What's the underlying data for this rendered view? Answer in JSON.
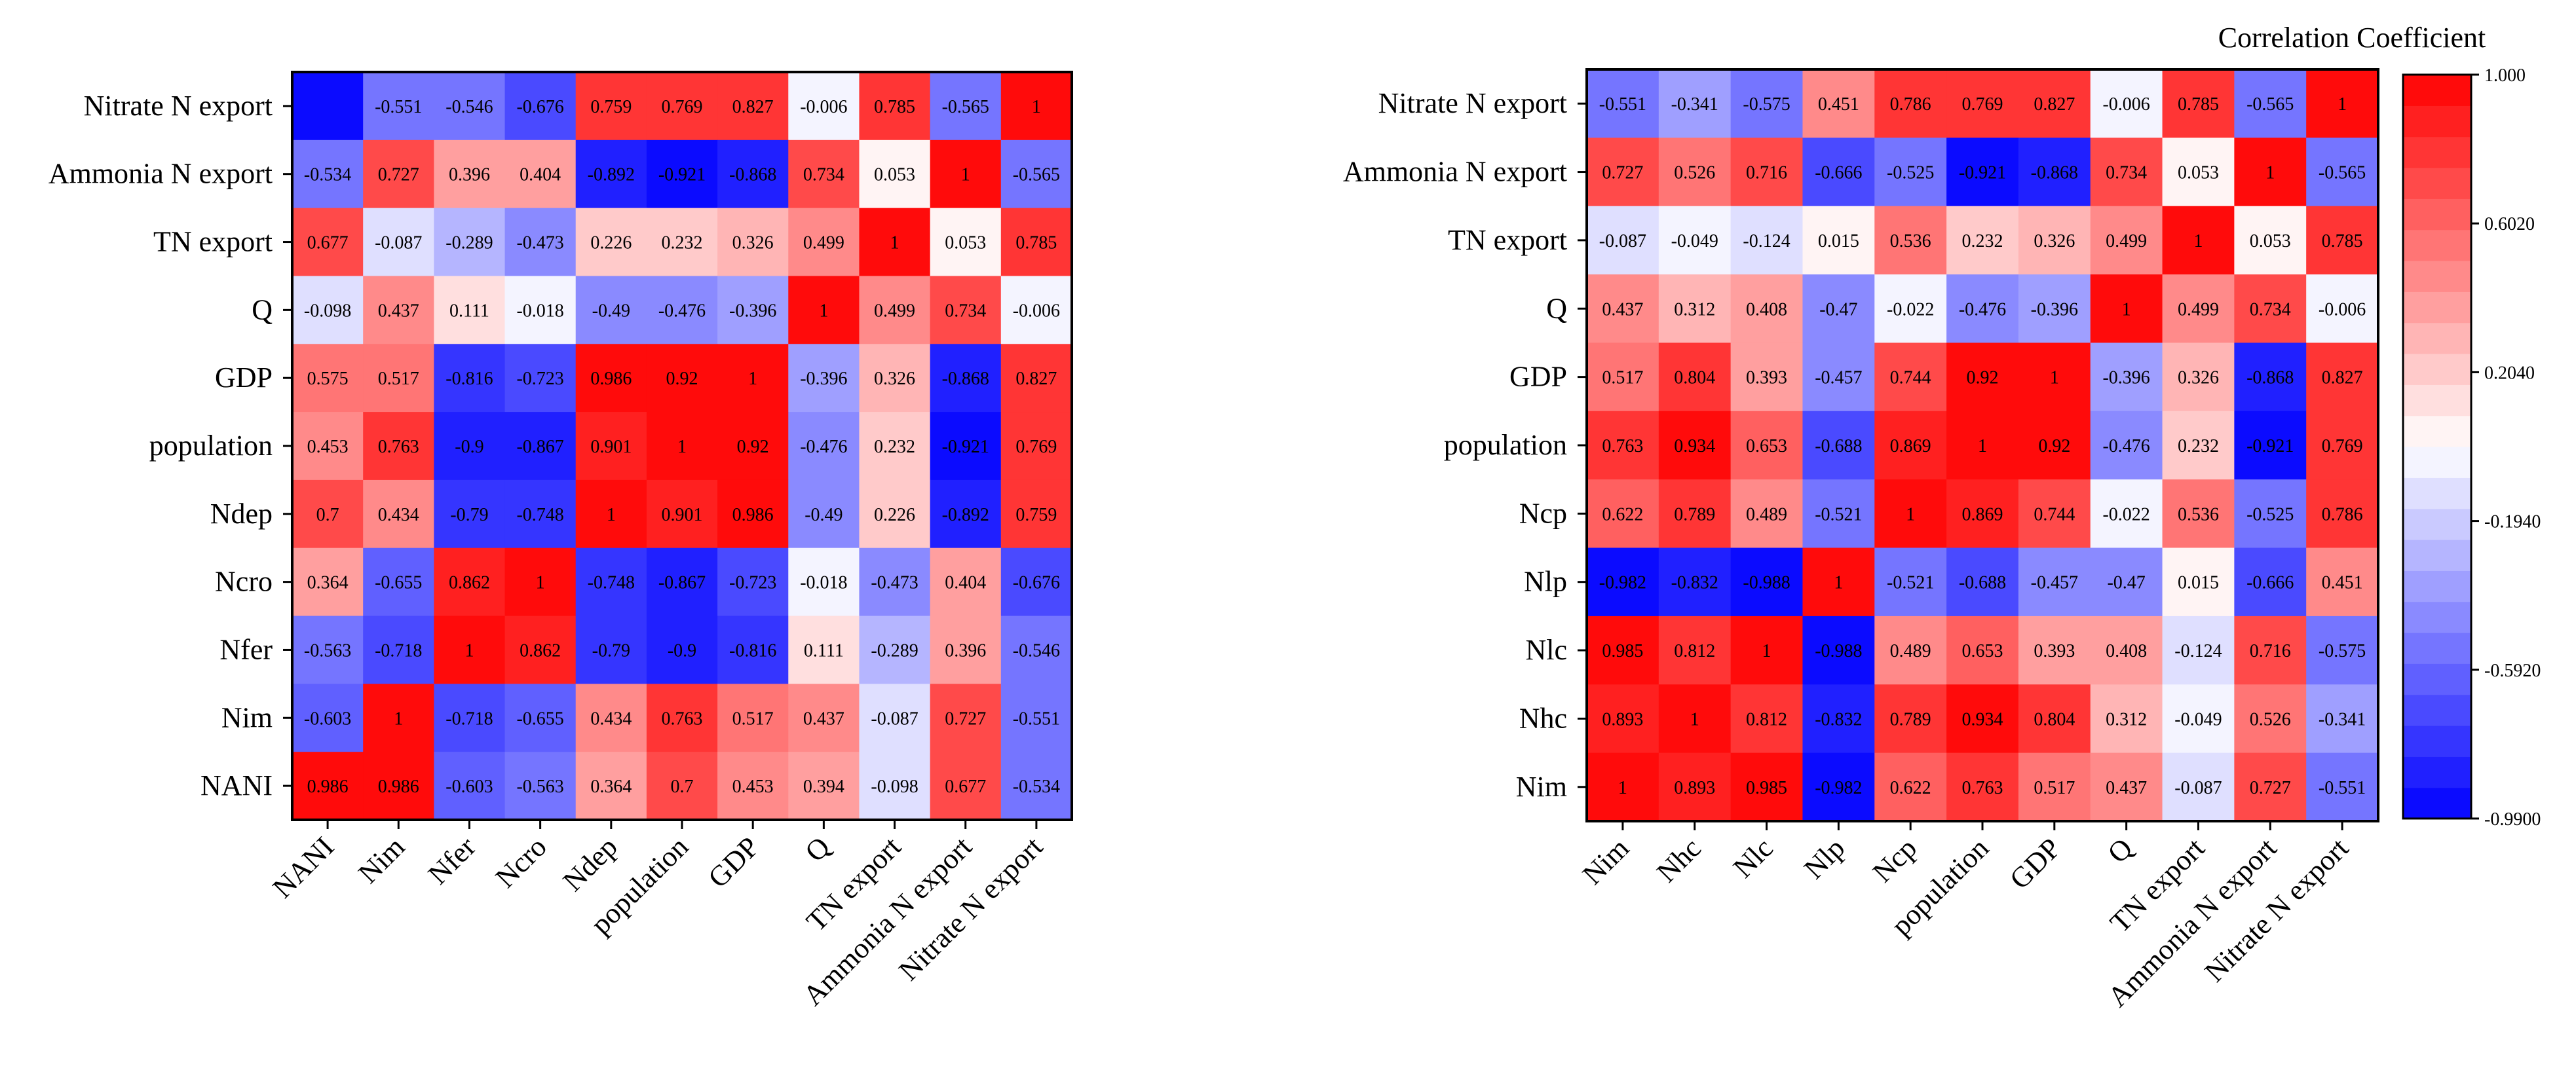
{
  "chart_data": [
    {
      "type": "heatmap",
      "title": "",
      "rows": [
        "Nitrate N export",
        "Ammonia N export",
        "TN export",
        "Q",
        "GDP",
        "population",
        "Ndep",
        "Ncro",
        "Nfer",
        "Nim",
        "NANI"
      ],
      "columns": [
        "NANI",
        "Nim",
        "Nfer",
        "Ncro",
        "Ndep",
        "population",
        "GDP",
        "Q",
        "TN export",
        "Ammonia N export",
        "Nitrate N export"
      ],
      "values": [
        [
          -0.99,
          -0.551,
          -0.546,
          -0.676,
          0.759,
          0.769,
          0.827,
          -0.006,
          0.785,
          -0.565,
          1
        ],
        [
          -0.534,
          0.727,
          0.396,
          0.404,
          -0.892,
          -0.921,
          -0.868,
          0.734,
          0.053,
          1,
          -0.565
        ],
        [
          0.677,
          -0.087,
          -0.289,
          -0.473,
          0.226,
          0.232,
          0.326,
          0.499,
          1,
          0.053,
          0.785
        ],
        [
          -0.098,
          0.437,
          0.111,
          -0.018,
          -0.49,
          -0.476,
          -0.396,
          1,
          0.499,
          0.734,
          -0.006
        ],
        [
          0.575,
          0.517,
          -0.816,
          -0.723,
          0.986,
          0.92,
          1,
          -0.396,
          0.326,
          -0.868,
          0.827
        ],
        [
          0.453,
          0.763,
          -0.9,
          -0.867,
          0.901,
          1,
          0.92,
          -0.476,
          0.232,
          -0.921,
          0.769
        ],
        [
          0.7,
          0.434,
          -0.79,
          -0.748,
          1,
          0.901,
          0.986,
          -0.49,
          0.226,
          -0.892,
          0.759
        ],
        [
          0.364,
          -0.655,
          0.862,
          1,
          -0.748,
          -0.867,
          -0.723,
          -0.018,
          -0.473,
          0.404,
          -0.676
        ],
        [
          -0.563,
          -0.718,
          1,
          0.862,
          -0.79,
          -0.9,
          -0.816,
          0.111,
          -0.289,
          0.396,
          -0.546
        ],
        [
          -0.603,
          1,
          -0.718,
          -0.655,
          0.434,
          0.763,
          0.517,
          0.437,
          -0.087,
          0.727,
          -0.551
        ],
        [
          0.986,
          0.986,
          -0.603,
          -0.563,
          0.364,
          0.7,
          0.453,
          0.394,
          -0.098,
          0.677,
          -0.534
        ]
      ],
      "labels": [
        [
          "",
          "-0.551",
          "-0.546",
          "-0.676",
          "0.759",
          "0.769",
          "0.827",
          "-0.006",
          "0.785",
          "-0.565",
          "1"
        ],
        [
          "-0.534",
          "0.727",
          "0.396",
          "0.404",
          "-0.892",
          "-0.921",
          "-0.868",
          "0.734",
          "0.053",
          "1",
          "-0.565"
        ],
        [
          "0.677",
          "-0.087",
          "-0.289",
          "-0.473",
          "0.226",
          "0.232",
          "0.326",
          "0.499",
          "1",
          "0.053",
          "0.785"
        ],
        [
          "-0.098",
          "0.437",
          "0.111",
          "-0.018",
          "-0.49",
          "-0.476",
          "-0.396",
          "1",
          "0.499",
          "0.734",
          "-0.006"
        ],
        [
          "0.575",
          "0.517",
          "-0.816",
          "-0.723",
          "0.986",
          "0.92",
          "1",
          "-0.396",
          "0.326",
          "-0.868",
          "0.827"
        ],
        [
          "0.453",
          "0.763",
          "-0.9",
          "-0.867",
          "0.901",
          "1",
          "0.92",
          "-0.476",
          "0.232",
          "-0.921",
          "0.769"
        ],
        [
          "0.7",
          "0.434",
          "-0.79",
          "-0.748",
          "1",
          "0.901",
          "0.986",
          "-0.49",
          "0.226",
          "-0.892",
          "0.759"
        ],
        [
          "0.364",
          "-0.655",
          "0.862",
          "1",
          "-0.748",
          "-0.867",
          "-0.723",
          "-0.018",
          "-0.473",
          "0.404",
          "-0.676"
        ],
        [
          "-0.563",
          "-0.718",
          "1",
          "0.862",
          "-0.79",
          "-0.9",
          "-0.816",
          "0.111",
          "-0.289",
          "0.396",
          "-0.546"
        ],
        [
          "-0.603",
          "1",
          "-0.718",
          "-0.655",
          "0.434",
          "0.763",
          "0.517",
          "0.437",
          "-0.087",
          "0.727",
          "-0.551"
        ],
        [
          "0.986",
          "0.986",
          "-0.603",
          "-0.563",
          "0.364",
          "0.7",
          "0.453",
          "0.394",
          "-0.098",
          "0.677",
          "-0.534"
        ]
      ]
    },
    {
      "type": "heatmap",
      "title": "",
      "rows": [
        "Nitrate N export",
        "Ammonia N export",
        "TN export",
        "Q",
        "GDP",
        "population",
        "Ncp",
        "Nlp",
        "Nlc",
        "Nhc",
        "Nim"
      ],
      "columns": [
        "Nim",
        "Nhc",
        "Nlc",
        "Nlp",
        "Ncp",
        "population",
        "GDP",
        "Q",
        "TN export",
        "Ammonia N export",
        "Nitrate N export"
      ],
      "values": [
        [
          -0.551,
          -0.341,
          -0.575,
          0.451,
          0.786,
          0.769,
          0.827,
          -0.006,
          0.785,
          -0.565,
          1
        ],
        [
          0.727,
          0.526,
          0.716,
          -0.666,
          -0.525,
          -0.921,
          -0.868,
          0.734,
          0.053,
          1,
          -0.565
        ],
        [
          -0.087,
          -0.049,
          -0.124,
          0.015,
          0.536,
          0.232,
          0.326,
          0.499,
          1,
          0.053,
          0.785
        ],
        [
          0.437,
          0.312,
          0.408,
          -0.47,
          -0.022,
          -0.476,
          -0.396,
          1,
          0.499,
          0.734,
          -0.006
        ],
        [
          0.517,
          0.804,
          0.393,
          -0.457,
          0.744,
          0.92,
          1,
          -0.396,
          0.326,
          -0.868,
          0.827
        ],
        [
          0.763,
          0.934,
          0.653,
          -0.688,
          0.869,
          1,
          0.92,
          -0.476,
          0.232,
          -0.921,
          0.769
        ],
        [
          0.622,
          0.789,
          0.489,
          -0.521,
          1,
          0.869,
          0.744,
          -0.022,
          0.536,
          -0.525,
          0.786
        ],
        [
          -0.982,
          -0.832,
          -0.988,
          1,
          -0.521,
          -0.688,
          -0.457,
          -0.47,
          0.015,
          -0.666,
          0.451
        ],
        [
          0.985,
          0.812,
          1,
          -0.988,
          0.489,
          0.653,
          0.393,
          0.408,
          -0.124,
          0.716,
          -0.575
        ],
        [
          0.893,
          1,
          0.812,
          -0.832,
          0.789,
          0.934,
          0.804,
          0.312,
          -0.049,
          0.526,
          -0.341
        ],
        [
          1,
          0.893,
          0.985,
          -0.982,
          0.622,
          0.763,
          0.517,
          0.437,
          -0.087,
          0.727,
          -0.551
        ]
      ],
      "labels": [
        [
          "-0.551",
          "-0.341",
          "-0.575",
          "0.451",
          "0.786",
          "0.769",
          "0.827",
          "-0.006",
          "0.785",
          "-0.565",
          "1"
        ],
        [
          "0.727",
          "0.526",
          "0.716",
          "-0.666",
          "-0.525",
          "-0.921",
          "-0.868",
          "0.734",
          "0.053",
          "1",
          "-0.565"
        ],
        [
          "-0.087",
          "-0.049",
          "-0.124",
          "0.015",
          "0.536",
          "0.232",
          "0.326",
          "0.499",
          "1",
          "0.053",
          "0.785"
        ],
        [
          "0.437",
          "0.312",
          "0.408",
          "-0.47",
          "-0.022",
          "-0.476",
          "-0.396",
          "1",
          "0.499",
          "0.734",
          "-0.006"
        ],
        [
          "0.517",
          "0.804",
          "0.393",
          "-0.457",
          "0.744",
          "0.92",
          "1",
          "-0.396",
          "0.326",
          "-0.868",
          "0.827"
        ],
        [
          "0.763",
          "0.934",
          "0.653",
          "-0.688",
          "0.869",
          "1",
          "0.92",
          "-0.476",
          "0.232",
          "-0.921",
          "0.769"
        ],
        [
          "0.622",
          "0.789",
          "0.489",
          "-0.521",
          "1",
          "0.869",
          "0.744",
          "-0.022",
          "0.536",
          "-0.525",
          "0.786"
        ],
        [
          "-0.982",
          "-0.832",
          "-0.988",
          "1",
          "-0.521",
          "-0.688",
          "-0.457",
          "-0.47",
          "0.015",
          "-0.666",
          "0.451"
        ],
        [
          "0.985",
          "0.812",
          "1",
          "-0.988",
          "0.489",
          "0.653",
          "0.393",
          "0.408",
          "-0.124",
          "0.716",
          "-0.575"
        ],
        [
          "0.893",
          "1",
          "0.812",
          "-0.832",
          "0.789",
          "0.934",
          "0.804",
          "0.312",
          "-0.049",
          "0.526",
          "-0.341"
        ],
        [
          "1",
          "0.893",
          "0.985",
          "-0.982",
          "0.622",
          "0.763",
          "0.517",
          "0.437",
          "-0.087",
          "0.727",
          "-0.551"
        ]
      ]
    }
  ],
  "colorbar": {
    "title": "Correlation Coefficient",
    "vmin": -0.99,
    "vmax": 1.0,
    "ticks": [
      {
        "value": 1.0,
        "label": "1.000"
      },
      {
        "value": 0.602,
        "label": "0.6020"
      },
      {
        "value": 0.204,
        "label": "0.2040"
      },
      {
        "value": -0.194,
        "label": "-0.1940"
      },
      {
        "value": -0.592,
        "label": "-0.5920"
      },
      {
        "value": -0.99,
        "label": "-0.9900"
      }
    ],
    "colors": {
      "low": "#0000ff",
      "mid": "#ffffff",
      "high": "#ff0000"
    }
  }
}
